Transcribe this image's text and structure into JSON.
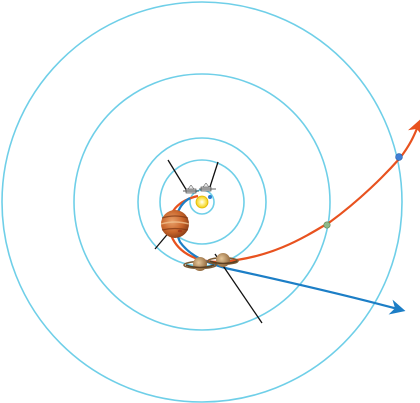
{
  "diagram": {
    "kind": "spacecraft-trajectory",
    "orbit_rings": [
      "earth-orbit",
      "jupiter-orbit",
      "saturn-orbit",
      "uranus-orbit",
      "neptune-orbit"
    ],
    "bodies": [
      "sun",
      "earth",
      "jupiter",
      "saturn",
      "uranus",
      "neptune"
    ],
    "spacecraft": [
      "spacecraft-1",
      "spacecraft-2"
    ],
    "trajectories": [
      "orange-trajectory",
      "blue-trajectory"
    ],
    "colors": {
      "orbit": "#6fcfe8",
      "trajectory_orange": "#e8521f",
      "trajectory_blue": "#1c7ec6",
      "sun": "#f4d81e",
      "jupiter": "#c9652b",
      "saturn": "#b98a55",
      "uranus": "#8fb889",
      "neptune": "#3f7fd6",
      "background": "#ffffff"
    }
  }
}
